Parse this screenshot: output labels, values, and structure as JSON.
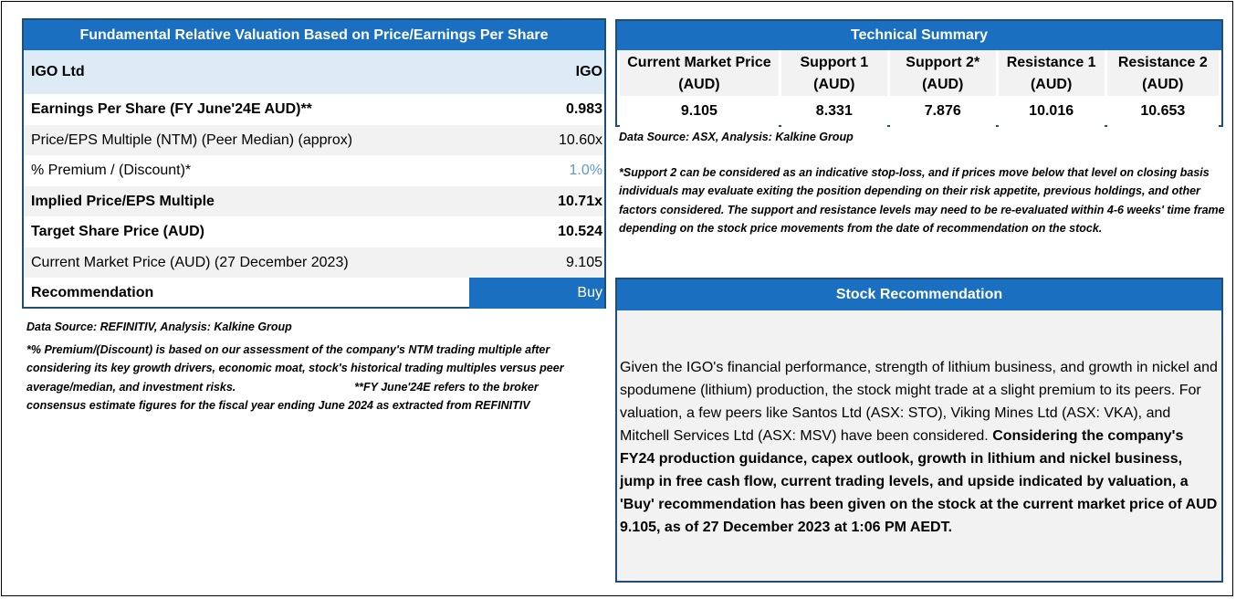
{
  "valuation": {
    "title": "Fundamental Relative Valuation Based on Price/Earnings Per Share",
    "company": {
      "label": "IGO Ltd",
      "value": "IGO"
    },
    "rows": [
      {
        "label": "Earnings Per Share (FY June'24E AUD)**",
        "value": "0.983"
      },
      {
        "label": "Price/EPS Multiple (NTM) (Peer Median) (approx)",
        "value": "10.60x"
      },
      {
        "label": "% Premium / (Discount)*",
        "value": "1.0%"
      },
      {
        "label": "Implied Price/EPS Multiple",
        "value": "10.71x"
      },
      {
        "label": "Target Share Price (AUD)",
        "value": "10.524"
      },
      {
        "label": "Current Market Price (AUD) (27 December 2023)",
        "value": "9.105"
      },
      {
        "label": "Recommendation",
        "value": "Buy"
      }
    ],
    "source": "Data Source: REFINITIV, Analysis: Kalkine Group",
    "footnote1": "*% Premium/(Discount) is based on our assessment of the company's NTM trading multiple after considering its key growth drivers, economic moat, stock's historical trading multiples versus peer average/median, and investment risks.",
    "footnote2": "**FY June'24E refers to the broker consensus estimate figures for the fiscal year ending June 2024 as extracted from REFINITIV"
  },
  "technical": {
    "title": "Technical Summary",
    "headers": [
      "Current Market Price (AUD)",
      "Support 1 (AUD)",
      "Support 2* (AUD)",
      "Resistance 1 (AUD)",
      "Resistance 2 (AUD)"
    ],
    "values": [
      "9.105",
      "8.331",
      "7.876",
      "10.016",
      "10.653"
    ],
    "source": "Data Source: ASX, Analysis: Kalkine Group",
    "disclaimer": "*Support 2 can be considered as an indicative stop-loss, and if prices move below that level on closing basis individuals may evaluate exiting the position depending on their risk appetite, previous holdings, and other factors considered. The support and resistance levels may need to be re-evaluated within 4-6 weeks' time frame depending on the stock price movements from the date of recommendation on the stock."
  },
  "recommendation": {
    "title": "Stock Recommendation",
    "text_normal": "Given the IGO's financial performance, strength of lithium business, and growth in nickel and spodumene (lithium) production, the stock might trade at a slight premium to its peers. For valuation, a few peers like Santos Ltd (ASX: STO), Viking Mines Ltd (ASX: VKA), and Mitchell Services Ltd (ASX: MSV) have been considered.",
    "text_bold": "Considering the company's FY24 production guidance, capex outlook, growth in lithium and nickel business, jump in free cash flow, current trading levels, and upside indicated by valuation, a 'Buy' recommendation has been given on the stock at the current market price of AUD 9.105, as of 27 December 2023 at 1:06 PM AEDT."
  },
  "colors": {
    "header_blue": "#1a6fc0",
    "border_navy": "#1f4e79",
    "light_blue": "#ddebf7",
    "premium_blue": "#5b9bd5"
  }
}
